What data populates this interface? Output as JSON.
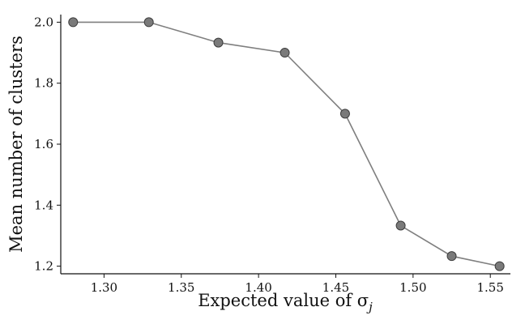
{
  "chart_data": {
    "type": "line",
    "title": "",
    "xlabel": "Expected value of σ",
    "xlabel_subscript": "j",
    "ylabel": "Mean number of clusters",
    "xlim": [
      1.272,
      1.563
    ],
    "ylim": [
      1.175,
      2.025
    ],
    "xticks": [
      1.3,
      1.35,
      1.4,
      1.45,
      1.5,
      1.55
    ],
    "xtick_labels": [
      "1.30",
      "1.35",
      "1.40",
      "1.45",
      "1.50",
      "1.55"
    ],
    "yticks": [
      1.2,
      1.4,
      1.6,
      1.8,
      2.0
    ],
    "ytick_labels": [
      "1.2",
      "1.4",
      "1.6",
      "1.8",
      "2.0"
    ],
    "grid": false,
    "series": [
      {
        "x": [
          1.28,
          1.329,
          1.374,
          1.417,
          1.456,
          1.492,
          1.525,
          1.556
        ],
        "y": [
          2.0,
          2.0,
          1.933,
          1.9,
          1.7,
          1.333,
          1.233,
          1.2
        ],
        "color": "#7f7f7f",
        "marker_color": "#7a7a7a"
      }
    ]
  }
}
